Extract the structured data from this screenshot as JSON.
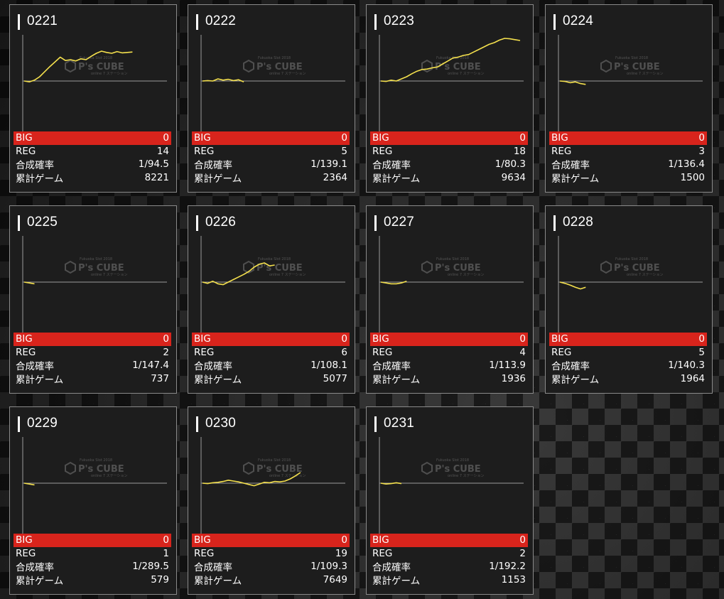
{
  "colors": {
    "card_bg": "#1d1d1d",
    "big_bar": "#d8241c",
    "line": "#f4e04d",
    "axis": "#9a9a9a"
  },
  "labels": {
    "big": "BIG",
    "reg": "REG",
    "rate": "合成確率",
    "games": "累計ゲーム"
  },
  "watermark": {
    "logo": "P's CUBE",
    "top_text": "Fukuoka Slot 2018",
    "sub_text": "online 7 ステーション"
  },
  "machines": [
    {
      "id": "0221",
      "big": "0",
      "reg": "14",
      "rate": "1/94.5",
      "games": "8221",
      "chart_data": {
        "type": "line",
        "ylim": [
          -1,
          1
        ],
        "series": [
          {
            "values": [
              0,
              -0.02,
              0.02,
              0.1,
              0.22,
              0.34,
              0.45,
              0.56,
              0.48,
              0.5,
              0.47,
              0.52,
              0.5,
              0.58,
              0.65,
              0.7,
              0.67,
              0.65,
              0.69,
              0.66,
              0.67,
              0.68
            ]
          }
        ]
      }
    },
    {
      "id": "0222",
      "big": "0",
      "reg": "5",
      "rate": "1/139.1",
      "games": "2364",
      "chart_data": {
        "type": "line",
        "ylim": [
          -1,
          1
        ],
        "series": [
          {
            "values": [
              0,
              0.01,
              0,
              0.05,
              0.02,
              0.04,
              0.01,
              0.03,
              -0.02
            ]
          }
        ]
      }
    },
    {
      "id": "0223",
      "big": "0",
      "reg": "18",
      "rate": "1/80.3",
      "games": "9634",
      "chart_data": {
        "type": "line",
        "ylim": [
          -1,
          1
        ],
        "series": [
          {
            "values": [
              0,
              -0.01,
              0.02,
              0.0,
              0.05,
              0.1,
              0.17,
              0.23,
              0.27,
              0.28,
              0.31,
              0.33,
              0.4,
              0.47,
              0.54,
              0.56,
              0.6,
              0.62,
              0.68,
              0.74,
              0.8,
              0.86,
              0.9,
              0.96,
              1.0,
              0.99,
              0.97,
              0.95
            ]
          }
        ]
      }
    },
    {
      "id": "0224",
      "big": "0",
      "reg": "3",
      "rate": "1/136.4",
      "games": "1500",
      "chart_data": {
        "type": "line",
        "ylim": [
          -1,
          1
        ],
        "series": [
          {
            "values": [
              0,
              -0.01,
              -0.04,
              -0.02,
              -0.06,
              -0.08
            ]
          }
        ]
      }
    },
    {
      "id": "0225",
      "big": "0",
      "reg": "2",
      "rate": "1/147.4",
      "games": "737",
      "chart_data": {
        "type": "line",
        "ylim": [
          -1,
          1
        ],
        "series": [
          {
            "values": [
              0,
              -0.02,
              -0.04
            ]
          }
        ]
      }
    },
    {
      "id": "0226",
      "big": "0",
      "reg": "6",
      "rate": "1/108.1",
      "games": "5077",
      "chart_data": {
        "type": "line",
        "ylim": [
          -1,
          1
        ],
        "series": [
          {
            "values": [
              0,
              -0.03,
              0.02,
              -0.04,
              -0.06,
              0.0,
              0.06,
              0.12,
              0.18,
              0.25,
              0.35,
              0.42,
              0.45,
              0.38,
              0.4
            ]
          }
        ]
      }
    },
    {
      "id": "0227",
      "big": "0",
      "reg": "4",
      "rate": "1/113.9",
      "games": "1936",
      "chart_data": {
        "type": "line",
        "ylim": [
          -1,
          1
        ],
        "series": [
          {
            "values": [
              0,
              -0.02,
              -0.04,
              -0.04,
              -0.02,
              0.02
            ]
          }
        ]
      }
    },
    {
      "id": "0228",
      "big": "0",
      "reg": "5",
      "rate": "1/140.3",
      "games": "1964",
      "chart_data": {
        "type": "line",
        "ylim": [
          -1,
          1
        ],
        "series": [
          {
            "values": [
              0,
              -0.03,
              -0.07,
              -0.12,
              -0.16,
              -0.12
            ]
          }
        ]
      }
    },
    {
      "id": "0229",
      "big": "0",
      "reg": "1",
      "rate": "1/289.5",
      "games": "579",
      "chart_data": {
        "type": "line",
        "ylim": [
          -1,
          1
        ],
        "series": [
          {
            "values": [
              0,
              -0.02,
              -0.04
            ]
          }
        ]
      }
    },
    {
      "id": "0230",
      "big": "0",
      "reg": "19",
      "rate": "1/109.3",
      "games": "7649",
      "chart_data": {
        "type": "line",
        "ylim": [
          -1,
          1
        ],
        "series": [
          {
            "values": [
              0,
              -0.01,
              0.01,
              0.02,
              0.04,
              0.07,
              0.05,
              0.03,
              0.0,
              -0.03,
              -0.06,
              -0.02,
              0.02,
              0.01,
              0.04,
              0.03,
              0.05,
              0.1,
              0.17,
              0.25
            ]
          }
        ]
      }
    },
    {
      "id": "0231",
      "big": "0",
      "reg": "2",
      "rate": "1/192.2",
      "games": "1153",
      "chart_data": {
        "type": "line",
        "ylim": [
          -1,
          1
        ],
        "series": [
          {
            "values": [
              0,
              -0.02,
              -0.01,
              0.01,
              -0.01
            ]
          }
        ]
      }
    }
  ]
}
